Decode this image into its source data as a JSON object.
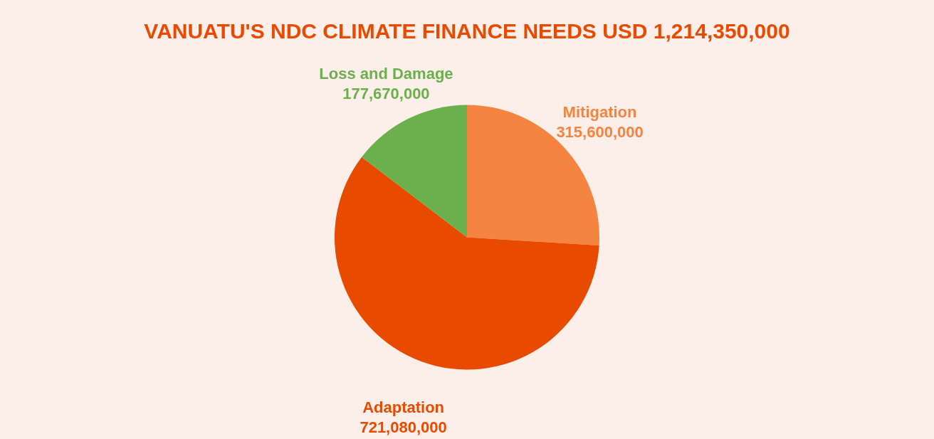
{
  "chart_data": {
    "type": "pie",
    "title": "VANUATU'S NDC CLIMATE FINANCE NEEDS USD 1,214,350,000",
    "categories": [
      "Mitigation",
      "Adaptation",
      "Loss and Damage"
    ],
    "values": [
      315600000,
      721080000,
      177670000
    ],
    "colors": [
      "#f4843f",
      "#e84a00",
      "#6ab04c"
    ],
    "value_labels": [
      "315,600,000",
      "721,080,000",
      "177,670,000"
    ],
    "legend": false
  }
}
